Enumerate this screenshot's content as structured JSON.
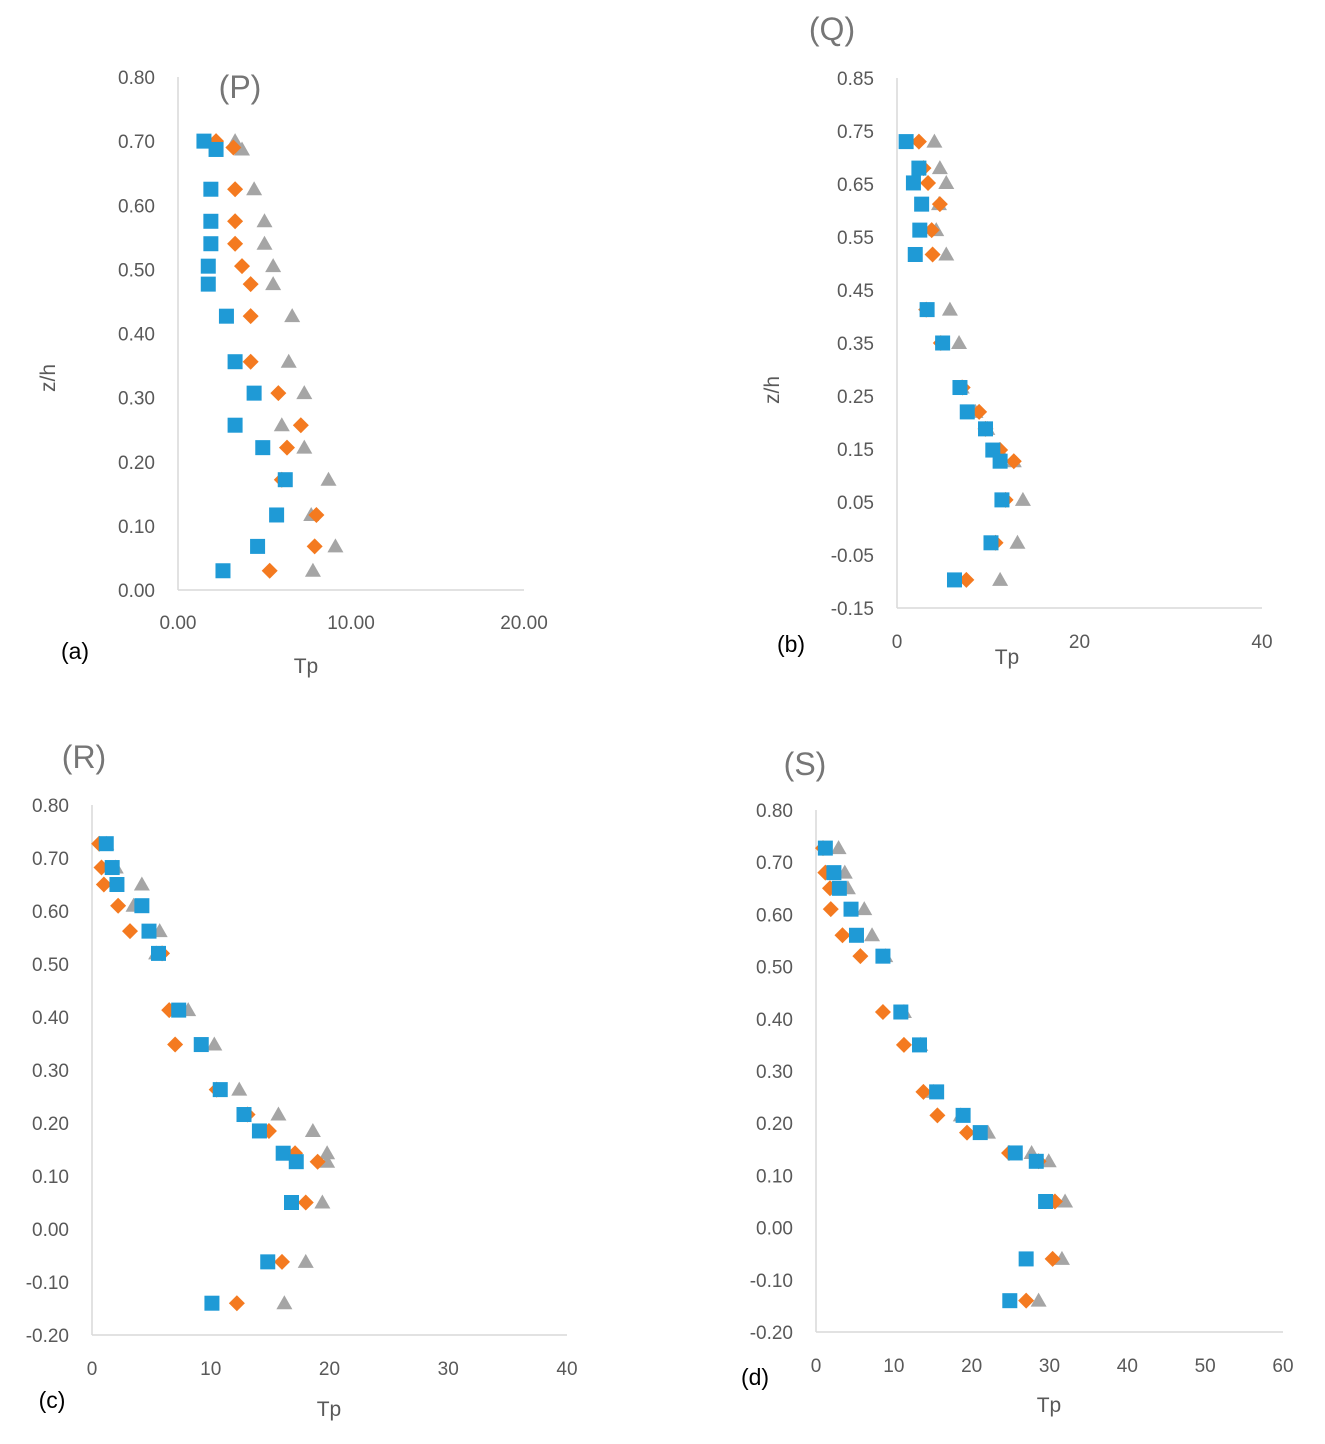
{
  "colors": {
    "series1": "#1f9ad6",
    "series2": "#f47a20",
    "series3": "#a5a5a5"
  },
  "chart_data": [
    {
      "type": "scatter",
      "title": "(P)",
      "panel_label": "(a)",
      "xlabel": "Tp",
      "ylabel": "z/h",
      "xlim": [
        0,
        20
      ],
      "ylim": [
        0,
        0.8
      ],
      "xticks": [
        "0.00",
        "10.00",
        "20.00"
      ],
      "yticks": [
        "0.00",
        "0.10",
        "0.20",
        "0.30",
        "0.40",
        "0.50",
        "0.60",
        "0.70",
        "0.80"
      ],
      "series": [
        {
          "name": "series 1",
          "marker": "square",
          "points": [
            [
              1.5,
              0.7
            ],
            [
              2.2,
              0.687
            ],
            [
              1.9,
              0.625
            ],
            [
              1.9,
              0.575
            ],
            [
              1.9,
              0.54
            ],
            [
              1.75,
              0.505
            ],
            [
              1.75,
              0.477
            ],
            [
              2.8,
              0.427
            ],
            [
              3.3,
              0.356
            ],
            [
              4.4,
              0.307
            ],
            [
              3.3,
              0.257
            ],
            [
              4.9,
              0.222
            ],
            [
              6.2,
              0.172
            ],
            [
              5.7,
              0.117
            ],
            [
              4.6,
              0.068
            ],
            [
              2.6,
              0.03
            ]
          ]
        },
        {
          "name": "series 2",
          "marker": "diamond",
          "points": [
            [
              2.2,
              0.7
            ],
            [
              3.2,
              0.69
            ],
            [
              3.3,
              0.625
            ],
            [
              3.3,
              0.575
            ],
            [
              3.3,
              0.54
            ],
            [
              3.7,
              0.505
            ],
            [
              4.2,
              0.477
            ],
            [
              4.2,
              0.427
            ],
            [
              4.2,
              0.356
            ],
            [
              5.8,
              0.307
            ],
            [
              7.1,
              0.257
            ],
            [
              6.3,
              0.222
            ],
            [
              6.0,
              0.172
            ],
            [
              8.0,
              0.117
            ],
            [
              7.9,
              0.068
            ],
            [
              5.3,
              0.03
            ]
          ]
        },
        {
          "name": "series 3",
          "marker": "triangle",
          "points": [
            [
              3.3,
              0.7
            ],
            [
              3.7,
              0.687
            ],
            [
              4.4,
              0.625
            ],
            [
              5.0,
              0.575
            ],
            [
              5.0,
              0.54
            ],
            [
              5.5,
              0.505
            ],
            [
              5.5,
              0.477
            ],
            [
              6.6,
              0.427
            ],
            [
              6.4,
              0.356
            ],
            [
              7.3,
              0.307
            ],
            [
              6.0,
              0.257
            ],
            [
              7.3,
              0.222
            ],
            [
              8.7,
              0.172
            ],
            [
              7.7,
              0.117
            ],
            [
              9.1,
              0.068
            ],
            [
              7.8,
              0.03
            ]
          ]
        }
      ]
    },
    {
      "type": "scatter",
      "title": "(Q)",
      "panel_label": "(b)",
      "xlabel": "Tp",
      "ylabel": "z/h",
      "xlim": [
        0,
        40
      ],
      "ylim": [
        -0.15,
        0.85
      ],
      "xticks": [
        "0",
        "20",
        "40"
      ],
      "yticks": [
        "-0.15",
        "-0.05",
        "0.05",
        "0.15",
        "0.25",
        "0.35",
        "0.45",
        "0.55",
        "0.65",
        "0.75",
        "0.85"
      ],
      "series": [
        {
          "name": "series 1",
          "marker": "square",
          "points": [
            [
              1.0,
              0.73
            ],
            [
              2.4,
              0.68
            ],
            [
              1.8,
              0.652
            ],
            [
              2.7,
              0.612
            ],
            [
              2.5,
              0.563
            ],
            [
              2.0,
              0.517
            ],
            [
              3.3,
              0.413
            ],
            [
              5.0,
              0.35
            ],
            [
              6.9,
              0.266
            ],
            [
              7.7,
              0.22
            ],
            [
              9.7,
              0.188
            ],
            [
              10.5,
              0.148
            ],
            [
              11.3,
              0.127
            ],
            [
              11.5,
              0.054
            ],
            [
              10.3,
              -0.027
            ],
            [
              6.3,
              -0.097
            ]
          ]
        },
        {
          "name": "series 2",
          "marker": "diamond",
          "points": [
            [
              2.4,
              0.73
            ],
            [
              2.9,
              0.68
            ],
            [
              3.4,
              0.652
            ],
            [
              4.7,
              0.612
            ],
            [
              3.8,
              0.563
            ],
            [
              3.9,
              0.517
            ],
            [
              3.2,
              0.413
            ],
            [
              4.8,
              0.35
            ],
            [
              7.2,
              0.266
            ],
            [
              9.0,
              0.22
            ],
            [
              9.7,
              0.188
            ],
            [
              11.3,
              0.148
            ],
            [
              12.8,
              0.127
            ],
            [
              11.9,
              0.054
            ],
            [
              10.8,
              -0.027
            ],
            [
              7.6,
              -0.097
            ]
          ]
        },
        {
          "name": "series 3",
          "marker": "triangle",
          "points": [
            [
              4.1,
              0.73
            ],
            [
              4.7,
              0.68
            ],
            [
              5.4,
              0.652
            ],
            [
              4.6,
              0.612
            ],
            [
              4.3,
              0.563
            ],
            [
              5.4,
              0.517
            ],
            [
              5.8,
              0.413
            ],
            [
              6.8,
              0.35
            ],
            [
              7.1,
              0.266
            ],
            [
              8.6,
              0.22
            ],
            [
              9.9,
              0.188
            ],
            [
              11.2,
              0.148
            ],
            [
              12.8,
              0.127
            ],
            [
              13.8,
              0.054
            ],
            [
              13.2,
              -0.027
            ],
            [
              11.3,
              -0.097
            ]
          ]
        }
      ]
    },
    {
      "type": "scatter",
      "title": "(R)",
      "panel_label": "(c)",
      "xlabel": "Tp",
      "ylabel": "",
      "xlim": [
        0,
        40
      ],
      "ylim": [
        -0.2,
        0.8
      ],
      "xticks": [
        "0",
        "10",
        "20",
        "30",
        "40"
      ],
      "yticks": [
        "-0.20",
        "-0.10",
        "0.00",
        "0.10",
        "0.20",
        "0.30",
        "0.40",
        "0.50",
        "0.60",
        "0.70",
        "0.80"
      ],
      "series": [
        {
          "name": "series 1",
          "marker": "square",
          "points": [
            [
              1.2,
              0.727
            ],
            [
              1.7,
              0.682
            ],
            [
              2.1,
              0.65
            ],
            [
              4.2,
              0.61
            ],
            [
              4.8,
              0.562
            ],
            [
              5.6,
              0.52
            ],
            [
              7.3,
              0.413
            ],
            [
              9.2,
              0.348
            ],
            [
              10.8,
              0.263
            ],
            [
              12.8,
              0.216
            ],
            [
              14.1,
              0.185
            ],
            [
              16.1,
              0.143
            ],
            [
              17.2,
              0.127
            ],
            [
              16.8,
              0.05
            ],
            [
              14.8,
              -0.062
            ],
            [
              10.1,
              -0.14
            ]
          ]
        },
        {
          "name": "series 2",
          "marker": "diamond",
          "points": [
            [
              0.6,
              0.727
            ],
            [
              0.8,
              0.682
            ],
            [
              1.0,
              0.65
            ],
            [
              2.2,
              0.61
            ],
            [
              3.2,
              0.562
            ],
            [
              5.9,
              0.52
            ],
            [
              6.5,
              0.413
            ],
            [
              7.0,
              0.348
            ],
            [
              10.5,
              0.263
            ],
            [
              13.1,
              0.216
            ],
            [
              14.9,
              0.185
            ],
            [
              17.1,
              0.143
            ],
            [
              19.0,
              0.127
            ],
            [
              18.0,
              0.05
            ],
            [
              16.0,
              -0.062
            ],
            [
              12.2,
              -0.14
            ]
          ]
        },
        {
          "name": "series 3",
          "marker": "triangle",
          "points": [
            [
              1.2,
              0.727
            ],
            [
              2.0,
              0.682
            ],
            [
              4.2,
              0.65
            ],
            [
              3.5,
              0.61
            ],
            [
              5.7,
              0.562
            ],
            [
              5.4,
              0.52
            ],
            [
              8.1,
              0.413
            ],
            [
              10.3,
              0.348
            ],
            [
              12.4,
              0.263
            ],
            [
              15.7,
              0.216
            ],
            [
              18.6,
              0.185
            ],
            [
              19.8,
              0.143
            ],
            [
              19.8,
              0.127
            ],
            [
              19.4,
              0.05
            ],
            [
              18.0,
              -0.062
            ],
            [
              16.2,
              -0.14
            ]
          ]
        }
      ]
    },
    {
      "type": "scatter",
      "title": "(S)",
      "panel_label": "(d)",
      "xlabel": "Tp",
      "ylabel": "",
      "xlim": [
        0,
        60
      ],
      "ylim": [
        -0.2,
        0.8
      ],
      "xticks": [
        "0",
        "10",
        "20",
        "30",
        "40",
        "50",
        "60"
      ],
      "yticks": [
        "-0.20",
        "-0.10",
        "0.00",
        "0.10",
        "0.20",
        "0.30",
        "0.40",
        "0.50",
        "0.60",
        "0.70",
        "0.80"
      ],
      "series": [
        {
          "name": "series 1",
          "marker": "square",
          "points": [
            [
              1.2,
              0.727
            ],
            [
              2.3,
              0.68
            ],
            [
              3.0,
              0.65
            ],
            [
              4.5,
              0.61
            ],
            [
              5.2,
              0.56
            ],
            [
              8.6,
              0.52
            ],
            [
              10.9,
              0.413
            ],
            [
              13.3,
              0.35
            ],
            [
              15.5,
              0.26
            ],
            [
              18.9,
              0.215
            ],
            [
              21.1,
              0.182
            ],
            [
              25.6,
              0.143
            ],
            [
              28.3,
              0.127
            ],
            [
              29.5,
              0.05
            ],
            [
              27.0,
              -0.06
            ],
            [
              24.9,
              -0.14
            ]
          ]
        },
        {
          "name": "series 2",
          "marker": "diamond",
          "points": [
            [
              0.9,
              0.727
            ],
            [
              1.2,
              0.68
            ],
            [
              1.8,
              0.65
            ],
            [
              1.9,
              0.61
            ],
            [
              3.4,
              0.56
            ],
            [
              5.7,
              0.52
            ],
            [
              8.6,
              0.413
            ],
            [
              11.3,
              0.35
            ],
            [
              13.8,
              0.26
            ],
            [
              15.6,
              0.215
            ],
            [
              19.4,
              0.182
            ],
            [
              24.8,
              0.143
            ],
            [
              28.6,
              0.127
            ],
            [
              30.7,
              0.05
            ],
            [
              30.4,
              -0.06
            ],
            [
              27.0,
              -0.14
            ]
          ]
        },
        {
          "name": "series 3",
          "marker": "triangle",
          "points": [
            [
              2.9,
              0.727
            ],
            [
              3.7,
              0.68
            ],
            [
              4.1,
              0.65
            ],
            [
              6.2,
              0.61
            ],
            [
              7.2,
              0.56
            ],
            [
              8.9,
              0.52
            ],
            [
              11.3,
              0.413
            ],
            [
              13.4,
              0.35
            ],
            [
              15.1,
              0.26
            ],
            [
              18.6,
              0.215
            ],
            [
              22.1,
              0.182
            ],
            [
              27.7,
              0.143
            ],
            [
              29.9,
              0.127
            ],
            [
              32.0,
              0.05
            ],
            [
              31.6,
              -0.06
            ],
            [
              28.6,
              -0.14
            ]
          ]
        }
      ]
    }
  ]
}
